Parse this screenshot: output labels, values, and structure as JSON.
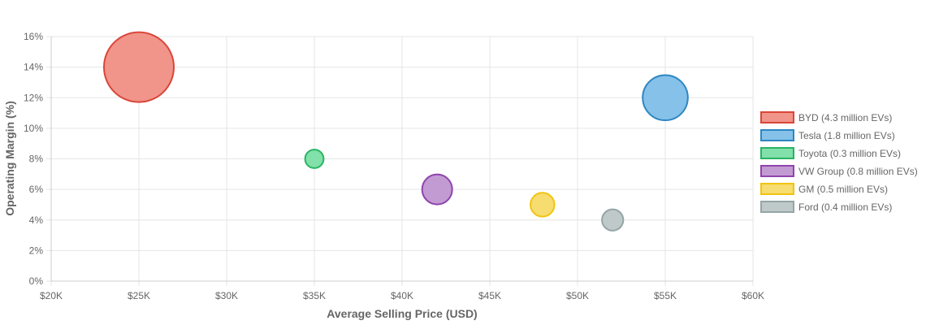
{
  "chart_data": {
    "type": "scatter",
    "title": "",
    "xlabel": "Average Selling Price (USD)",
    "ylabel": "Operating Margin (%)",
    "xlim": [
      20000,
      60000
    ],
    "ylim": [
      0,
      16
    ],
    "x_ticks": [
      20000,
      25000,
      30000,
      35000,
      40000,
      45000,
      50000,
      55000,
      60000
    ],
    "x_tick_labels": [
      "$20K",
      "$25K",
      "$30K",
      "$35K",
      "$40K",
      "$45K",
      "$50K",
      "$55K",
      "$60K"
    ],
    "y_ticks": [
      0,
      2,
      4,
      6,
      8,
      10,
      12,
      14,
      16
    ],
    "y_tick_labels": [
      "0%",
      "2%",
      "4%",
      "6%",
      "8%",
      "10%",
      "12%",
      "14%",
      "16%"
    ],
    "grid": true,
    "legend_position": "right",
    "series": [
      {
        "name": "BYD (4.3 million EVs)",
        "x": 25000,
        "y": 14,
        "size": 4.3,
        "fill": "#f1948a",
        "stroke": "#d9463a"
      },
      {
        "name": "Tesla (1.8 million EVs)",
        "x": 55000,
        "y": 12,
        "size": 1.8,
        "fill": "#85c1e9",
        "stroke": "#2e86c1"
      },
      {
        "name": "Toyota (0.3 million EVs)",
        "x": 35000,
        "y": 8,
        "size": 0.3,
        "fill": "#82e0aa",
        "stroke": "#28b463"
      },
      {
        "name": "VW Group (0.8 million EVs)",
        "x": 42000,
        "y": 6,
        "size": 0.8,
        "fill": "#c39bd3",
        "stroke": "#8e44ad"
      },
      {
        "name": "GM (0.5 million EVs)",
        "x": 48000,
        "y": 5,
        "size": 0.5,
        "fill": "#f7dc6f",
        "stroke": "#f1c40f"
      },
      {
        "name": "Ford (0.4 million EVs)",
        "x": 52000,
        "y": 4,
        "size": 0.4,
        "fill": "#bfc9ca",
        "stroke": "#95a5a6"
      }
    ]
  }
}
